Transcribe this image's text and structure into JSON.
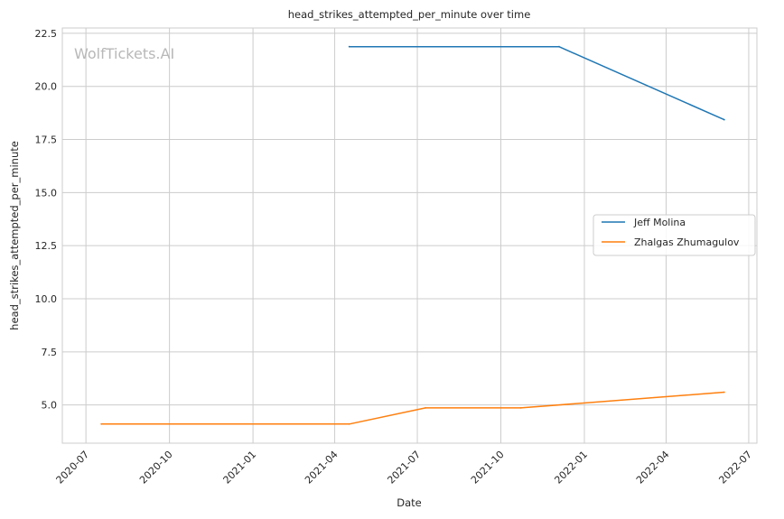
{
  "watermark": "WolfTickets.AI",
  "chart_data": {
    "type": "line",
    "title": "head_strikes_attempted_per_minute over time",
    "xlabel": "Date",
    "ylabel": "head_strikes_attempted_per_minute",
    "xlim": [
      "2020-06-05",
      "2022-07-10"
    ],
    "ylim": [
      3.2,
      22.75
    ],
    "x_ticks": [
      "2020-07-01",
      "2020-10-01",
      "2021-01-01",
      "2021-04-01",
      "2021-07-01",
      "2021-10-01",
      "2022-01-01",
      "2022-04-01",
      "2022-07-01"
    ],
    "x_tick_labels": [
      "2020-07",
      "2020-10",
      "2021-01",
      "2021-04",
      "2021-07",
      "2021-10",
      "2022-01",
      "2022-04",
      "2022-07"
    ],
    "y_ticks": [
      5.0,
      7.5,
      10.0,
      12.5,
      15.0,
      17.5,
      20.0,
      22.5
    ],
    "y_tick_labels": [
      "5.0",
      "7.5",
      "10.0",
      "12.5",
      "15.0",
      "17.5",
      "20.0",
      "22.5"
    ],
    "grid": true,
    "legend_position": "center-right",
    "series": [
      {
        "name": "Jeff Molina",
        "color": "#1f77b4",
        "x": [
          "2021-04-17",
          "2021-12-04",
          "2022-06-04"
        ],
        "y": [
          21.87,
          21.87,
          18.43
        ]
      },
      {
        "name": "Zhalgas Zhumagulov",
        "color": "#ff7f0e",
        "x": [
          "2020-07-18",
          "2021-04-17",
          "2021-07-10",
          "2021-10-23",
          "2022-06-04"
        ],
        "y": [
          4.1,
          4.1,
          4.86,
          4.86,
          5.6
        ]
      }
    ]
  }
}
